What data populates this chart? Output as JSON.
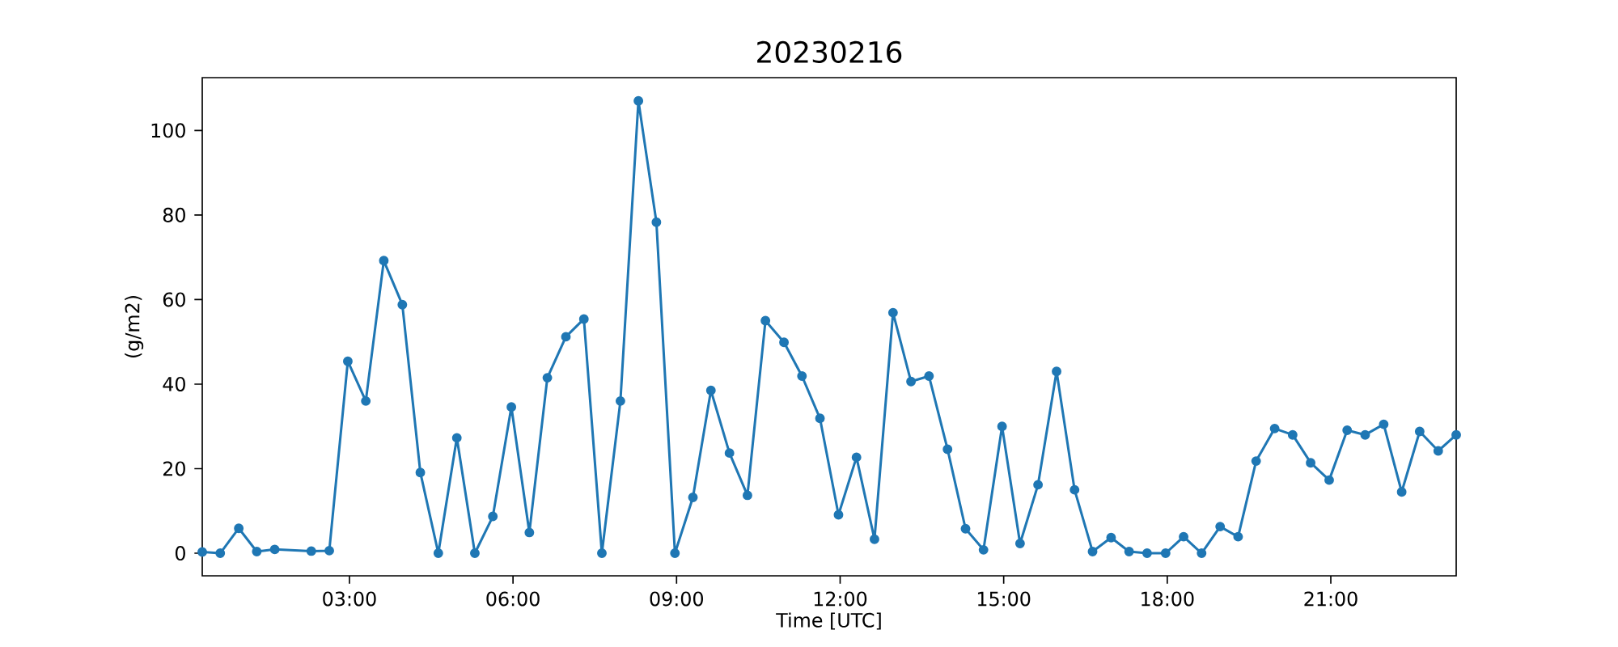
{
  "chart_data": {
    "type": "line",
    "title": "20230216",
    "xlabel": "Time [UTC]",
    "ylabel": "(g/m2)",
    "x": [
      0.3,
      0.63,
      0.97,
      1.3,
      1.63,
      2.3,
      2.63,
      2.97,
      3.3,
      3.63,
      3.97,
      4.3,
      4.63,
      4.97,
      5.3,
      5.63,
      5.97,
      6.3,
      6.63,
      6.97,
      7.3,
      7.63,
      7.97,
      8.3,
      8.63,
      8.97,
      9.3,
      9.63,
      9.97,
      10.3,
      10.63,
      10.97,
      11.3,
      11.63,
      11.97,
      12.3,
      12.63,
      12.97,
      13.3,
      13.63,
      13.97,
      14.3,
      14.63,
      14.97,
      15.3,
      15.63,
      15.97,
      16.3,
      16.63,
      16.97,
      17.3,
      17.63,
      17.97,
      18.3,
      18.63,
      18.97,
      19.3,
      19.63,
      19.97,
      20.3,
      20.63,
      20.97,
      21.3,
      21.63,
      21.97,
      22.3,
      22.63,
      22.97,
      23.3
    ],
    "series": [
      {
        "color": "#1f77b4",
        "values": [
          0.3,
          0,
          5.9,
          0.4,
          0.9,
          0.5,
          0.6,
          45.4,
          36,
          69.2,
          58.8,
          19.1,
          0,
          27.3,
          0,
          8.7,
          34.6,
          4.9,
          41.5,
          51.2,
          55.4,
          0,
          36,
          107,
          78.3,
          0,
          13.2,
          38.5,
          23.7,
          13.7,
          55,
          49.9,
          41.9,
          31.9,
          9.1,
          22.7,
          3.3,
          56.9,
          40.6,
          41.9,
          24.6,
          5.8,
          0.8,
          30,
          2.3,
          16.2,
          43,
          15,
          0.4,
          3.7,
          0.4,
          0,
          0,
          3.9,
          0,
          6.3,
          3.9,
          21.8,
          29.5,
          28,
          21.4,
          17.3,
          29.1,
          28,
          30.5,
          14.5,
          28.8,
          24.2,
          28
        ]
      }
    ],
    "xlim": [
      0.3,
      23.3
    ],
    "ylim": [
      -5.35,
      112.5
    ],
    "xticks": [
      {
        "value": 3,
        "label": "03:00"
      },
      {
        "value": 6,
        "label": "06:00"
      },
      {
        "value": 9,
        "label": "09:00"
      },
      {
        "value": 12,
        "label": "12:00"
      },
      {
        "value": 15,
        "label": "15:00"
      },
      {
        "value": 18,
        "label": "18:00"
      },
      {
        "value": 21,
        "label": "21:00"
      }
    ],
    "yticks": [
      0,
      20,
      40,
      60,
      80,
      100
    ],
    "marker": "circle",
    "line_style": "solid",
    "grid": false
  }
}
